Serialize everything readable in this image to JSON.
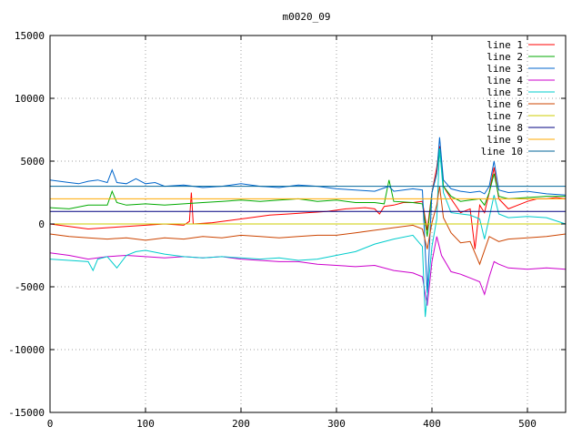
{
  "chart_data": {
    "type": "line",
    "title": "m0020_09",
    "xlabel": "",
    "ylabel": "",
    "xlim": [
      0,
      540
    ],
    "ylim": [
      -15000,
      15000
    ],
    "xticks": [
      "0",
      "100",
      "200",
      "300",
      "400",
      "500"
    ],
    "yticks": [
      "15000",
      "10000",
      "5000",
      "0",
      "-5000",
      "-10000",
      "-15000"
    ],
    "grid": true,
    "legend_position": "top-right",
    "series": [
      {
        "name": "line 1",
        "color": "#ff0000",
        "x": [
          0,
          20,
          40,
          60,
          80,
          100,
          120,
          140,
          146,
          148,
          150,
          170,
          190,
          210,
          230,
          250,
          270,
          290,
          310,
          330,
          340,
          345,
          350,
          360,
          370,
          380,
          390,
          395,
          400,
          405,
          408,
          412,
          420,
          430,
          440,
          445,
          450,
          455,
          460,
          465,
          470,
          480,
          490,
          500,
          510,
          520,
          530,
          540
        ],
        "y": [
          0,
          -200,
          -400,
          -300,
          -200,
          -100,
          0,
          -100,
          200,
          2500,
          0,
          100,
          300,
          500,
          700,
          800,
          900,
          1000,
          1200,
          1300,
          1200,
          800,
          1400,
          1500,
          1700,
          1700,
          1800,
          -500,
          2500,
          4500,
          6200,
          3000,
          2000,
          900,
          1200,
          -2000,
          1500,
          900,
          2500,
          4500,
          2000,
          1200,
          1500,
          1800,
          2000,
          2000,
          2100,
          2000
        ]
      },
      {
        "name": "line 2",
        "color": "#00aa00",
        "x": [
          0,
          20,
          40,
          60,
          65,
          70,
          80,
          100,
          120,
          140,
          160,
          180,
          200,
          220,
          240,
          260,
          280,
          300,
          320,
          340,
          350,
          355,
          360,
          380,
          390,
          395,
          400,
          405,
          408,
          412,
          420,
          430,
          440,
          450,
          455,
          460,
          465,
          470,
          480,
          500,
          520,
          540
        ],
        "y": [
          1300,
          1200,
          1500,
          1500,
          2600,
          1700,
          1500,
          1600,
          1500,
          1600,
          1700,
          1800,
          1900,
          1800,
          1900,
          2000,
          1800,
          1900,
          1700,
          1700,
          1600,
          3500,
          1800,
          1700,
          1600,
          -1000,
          2500,
          4000,
          6000,
          3000,
          2200,
          1800,
          1900,
          2000,
          1500,
          2500,
          4000,
          2200,
          2000,
          2100,
          2200,
          2200
        ]
      },
      {
        "name": "line 3",
        "color": "#0066cc",
        "x": [
          0,
          10,
          20,
          30,
          40,
          50,
          60,
          65,
          70,
          80,
          90,
          100,
          110,
          120,
          140,
          160,
          180,
          200,
          220,
          240,
          260,
          280,
          300,
          320,
          340,
          355,
          360,
          370,
          380,
          390,
          395,
          400,
          405,
          408,
          412,
          420,
          430,
          440,
          450,
          455,
          460,
          465,
          470,
          480,
          500,
          520,
          540
        ],
        "y": [
          3500,
          3400,
          3300,
          3200,
          3400,
          3500,
          3300,
          4300,
          3300,
          3200,
          3600,
          3200,
          3300,
          3000,
          3100,
          2900,
          3000,
          3200,
          3000,
          2900,
          3100,
          3000,
          2800,
          2700,
          2600,
          3000,
          2600,
          2700,
          2800,
          2700,
          -5500,
          2500,
          4000,
          6900,
          3500,
          2800,
          2600,
          2500,
          2600,
          2400,
          3000,
          5000,
          2700,
          2500,
          2600,
          2400,
          2300
        ]
      },
      {
        "name": "line 4",
        "color": "#cc00cc",
        "x": [
          0,
          20,
          40,
          60,
          80,
          100,
          120,
          140,
          160,
          180,
          200,
          220,
          240,
          260,
          280,
          300,
          320,
          340,
          360,
          380,
          390,
          395,
          400,
          405,
          410,
          420,
          430,
          440,
          450,
          455,
          460,
          465,
          470,
          480,
          500,
          520,
          540
        ],
        "y": [
          -2300,
          -2500,
          -2800,
          -2600,
          -2500,
          -2600,
          -2700,
          -2600,
          -2700,
          -2600,
          -2800,
          -2900,
          -3000,
          -3000,
          -3200,
          -3300,
          -3400,
          -3300,
          -3700,
          -3900,
          -4200,
          -6500,
          -3000,
          -1000,
          -2500,
          -3800,
          -4000,
          -4300,
          -4600,
          -5600,
          -4200,
          -3000,
          -3200,
          -3500,
          -3600,
          -3500,
          -3600
        ]
      },
      {
        "name": "line 5",
        "color": "#00cccc",
        "x": [
          0,
          20,
          40,
          45,
          50,
          60,
          70,
          80,
          90,
          100,
          120,
          140,
          160,
          180,
          200,
          220,
          240,
          260,
          280,
          300,
          320,
          340,
          360,
          380,
          390,
          393,
          396,
          400,
          405,
          408,
          412,
          420,
          440,
          450,
          455,
          460,
          465,
          470,
          480,
          500,
          520,
          540
        ],
        "y": [
          -2800,
          -2900,
          -3000,
          -3700,
          -2800,
          -2600,
          -3500,
          -2500,
          -2200,
          -2100,
          -2400,
          -2600,
          -2700,
          -2600,
          -2700,
          -2800,
          -2700,
          -2900,
          -2800,
          -2500,
          -2200,
          -1600,
          -1200,
          -900,
          -1800,
          -7400,
          -5000,
          -1800,
          400,
          6000,
          2500,
          900,
          700,
          400,
          -1200,
          500,
          2300,
          800,
          500,
          600,
          500,
          0
        ]
      },
      {
        "name": "line 6",
        "color": "#cc4400",
        "x": [
          0,
          20,
          40,
          60,
          80,
          100,
          120,
          140,
          160,
          180,
          200,
          220,
          240,
          260,
          280,
          300,
          320,
          340,
          360,
          380,
          390,
          395,
          400,
          405,
          408,
          412,
          420,
          430,
          440,
          450,
          460,
          470,
          480,
          500,
          520,
          540
        ],
        "y": [
          -800,
          -1000,
          -1100,
          -1200,
          -1100,
          -1300,
          -1100,
          -1200,
          -1000,
          -1100,
          -900,
          -1000,
          -1100,
          -1000,
          -900,
          -900,
          -700,
          -500,
          -300,
          -100,
          -400,
          -2000,
          100,
          1500,
          3000,
          500,
          -700,
          -1500,
          -1400,
          -3200,
          -1000,
          -1400,
          -1200,
          -1100,
          -1000,
          -800
        ]
      },
      {
        "name": "line 7",
        "color": "#cccc00",
        "x": [
          0,
          540
        ],
        "y": [
          0,
          0
        ]
      },
      {
        "name": "line 8",
        "color": "#000080",
        "x": [
          0,
          540
        ],
        "y": [
          1000,
          1000
        ]
      },
      {
        "name": "line 9",
        "color": "#ffaa00",
        "x": [
          0,
          540
        ],
        "y": [
          2000,
          2000
        ]
      },
      {
        "name": "line 10",
        "color": "#006699",
        "x": [
          0,
          540
        ],
        "y": [
          3000,
          3000
        ]
      }
    ]
  }
}
